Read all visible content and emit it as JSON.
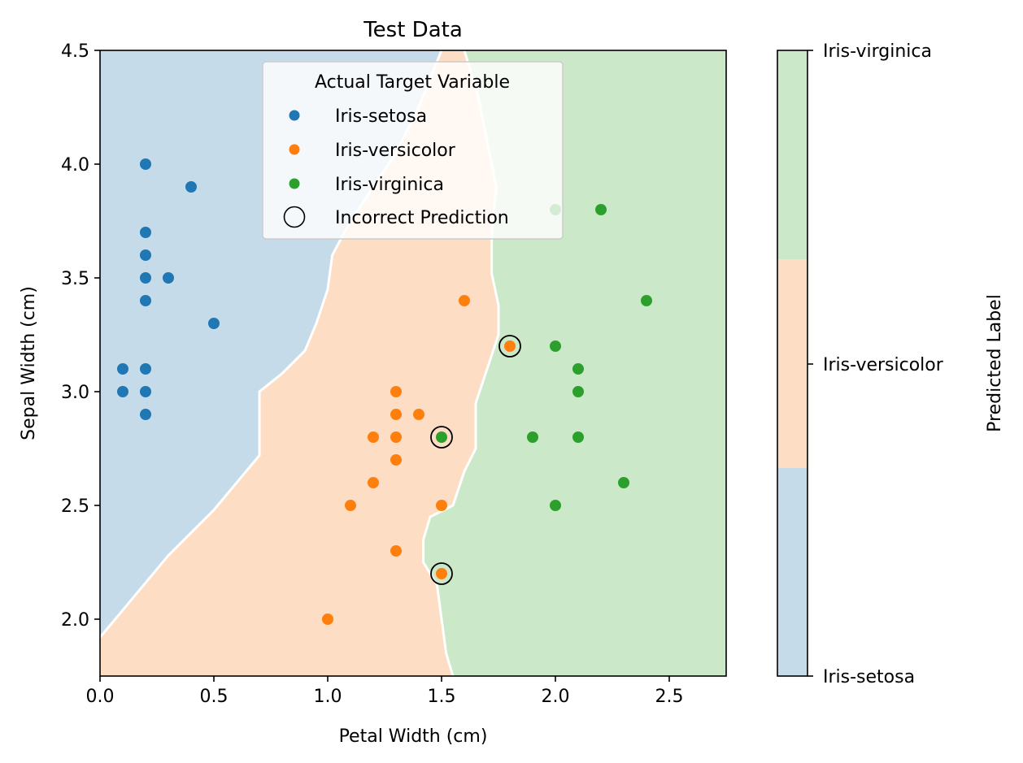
{
  "chart_data": {
    "type": "scatter",
    "title": "Test Data",
    "xlabel": "Petal Width (cm)",
    "ylabel": "Sepal Width (cm)",
    "xlim": [
      0.0,
      2.75
    ],
    "ylim": [
      1.75,
      4.5
    ],
    "x_ticks": [
      {
        "value": 0.0,
        "label": "0.0"
      },
      {
        "value": 0.5,
        "label": "0.5"
      },
      {
        "value": 1.0,
        "label": "1.0"
      },
      {
        "value": 1.5,
        "label": "1.5"
      },
      {
        "value": 2.0,
        "label": "2.0"
      },
      {
        "value": 2.5,
        "label": "2.5"
      }
    ],
    "y_ticks": [
      {
        "value": 2.0,
        "label": "2.0"
      },
      {
        "value": 2.5,
        "label": "2.5"
      },
      {
        "value": 3.0,
        "label": "3.0"
      },
      {
        "value": 3.5,
        "label": "3.5"
      },
      {
        "value": 4.0,
        "label": "4.0"
      },
      {
        "value": 4.5,
        "label": "4.5"
      }
    ],
    "grid": false,
    "legend": {
      "title": "Actual Target Variable",
      "placement": "top-center",
      "entries": [
        "Iris-setosa",
        "Iris-versicolor",
        "Iris-virginica",
        "Incorrect Prediction"
      ]
    },
    "series": [
      {
        "name": "Iris-setosa",
        "color": "#1f77b4",
        "points": [
          [
            0.2,
            4.0
          ],
          [
            0.4,
            3.9
          ],
          [
            0.2,
            3.7
          ],
          [
            0.2,
            3.6
          ],
          [
            0.2,
            3.5
          ],
          [
            0.3,
            3.5
          ],
          [
            0.2,
            3.4
          ],
          [
            0.5,
            3.3
          ],
          [
            0.1,
            3.1
          ],
          [
            0.2,
            3.1
          ],
          [
            0.1,
            3.0
          ],
          [
            0.2,
            3.0
          ],
          [
            0.2,
            2.9
          ]
        ]
      },
      {
        "name": "Iris-versicolor",
        "color": "#ff7f0e",
        "points": [
          [
            1.6,
            3.4
          ],
          [
            1.8,
            3.2
          ],
          [
            1.3,
            3.0
          ],
          [
            1.3,
            2.9
          ],
          [
            1.4,
            2.9
          ],
          [
            1.2,
            2.8
          ],
          [
            1.3,
            2.8
          ],
          [
            1.3,
            2.7
          ],
          [
            1.2,
            2.6
          ],
          [
            1.1,
            2.5
          ],
          [
            1.5,
            2.5
          ],
          [
            1.3,
            2.3
          ],
          [
            1.5,
            2.2
          ],
          [
            1.0,
            2.0
          ]
        ]
      },
      {
        "name": "Iris-virginica",
        "color": "#2ca02c",
        "points": [
          [
            2.0,
            3.8
          ],
          [
            2.2,
            3.8
          ],
          [
            2.4,
            3.4
          ],
          [
            2.0,
            3.2
          ],
          [
            2.1,
            3.1
          ],
          [
            2.1,
            3.0
          ],
          [
            1.5,
            2.8
          ],
          [
            1.9,
            2.8
          ],
          [
            2.1,
            2.8
          ],
          [
            2.3,
            2.6
          ],
          [
            2.0,
            2.5
          ]
        ]
      }
    ],
    "incorrect_predictions": [
      [
        1.8,
        3.2
      ],
      [
        1.5,
        2.8
      ],
      [
        1.5,
        2.2
      ]
    ],
    "decision_regions": {
      "setosa_versicolor_boundary": [
        [
          0.0,
          1.92
        ],
        [
          0.1,
          2.04
        ],
        [
          0.2,
          2.16
        ],
        [
          0.3,
          2.28
        ],
        [
          0.4,
          2.38
        ],
        [
          0.5,
          2.48
        ],
        [
          0.6,
          2.6
        ],
        [
          0.7,
          2.72
        ],
        [
          0.7,
          3.0
        ],
        [
          0.8,
          3.08
        ],
        [
          0.9,
          3.18
        ],
        [
          0.95,
          3.3
        ],
        [
          1.0,
          3.45
        ],
        [
          1.02,
          3.6
        ],
        [
          1.1,
          3.75
        ],
        [
          1.2,
          3.9
        ],
        [
          1.3,
          4.05
        ],
        [
          1.4,
          4.25
        ],
        [
          1.5,
          4.5
        ]
      ],
      "versicolor_virginica_boundary": [
        [
          1.55,
          1.75
        ],
        [
          1.52,
          1.85
        ],
        [
          1.5,
          2.0
        ],
        [
          1.48,
          2.15
        ],
        [
          1.42,
          2.25
        ],
        [
          1.42,
          2.35
        ],
        [
          1.45,
          2.45
        ],
        [
          1.55,
          2.5
        ],
        [
          1.6,
          2.65
        ],
        [
          1.65,
          2.75
        ],
        [
          1.65,
          2.95
        ],
        [
          1.7,
          3.1
        ],
        [
          1.75,
          3.25
        ],
        [
          1.75,
          3.38
        ],
        [
          1.72,
          3.52
        ],
        [
          1.72,
          3.7
        ],
        [
          1.74,
          3.9
        ],
        [
          1.7,
          4.1
        ],
        [
          1.66,
          4.3
        ],
        [
          1.6,
          4.5
        ]
      ]
    },
    "colorbar": {
      "label": "Predicted Label",
      "ticks": [
        "Iris-setosa",
        "Iris-versicolor",
        "Iris-virginica"
      ],
      "colors": [
        "#c6dbea",
        "#fdddc3",
        "#cbe8c9"
      ]
    },
    "region_colors": {
      "setosa": "#c6dbea",
      "versicolor": "#fdddc3",
      "virginica": "#cbe8c9"
    }
  }
}
